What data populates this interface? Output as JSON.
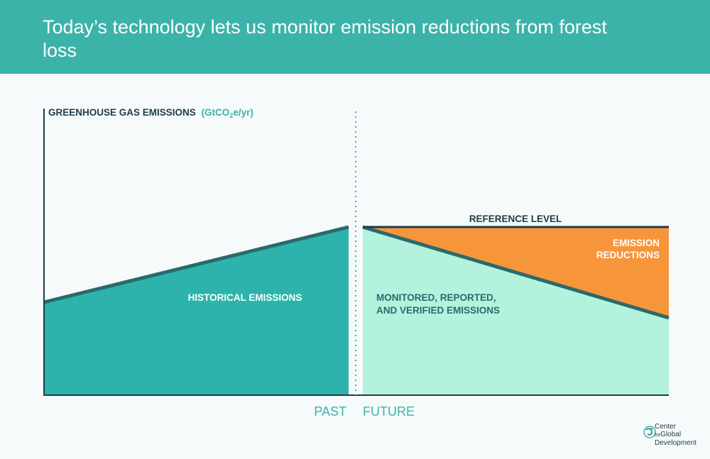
{
  "header": {
    "title": "Today’s technology lets us monitor emission reductions from forest loss"
  },
  "diagram": {
    "y_axis_label_main": "GREENHOUSE GAS EMISSIONS",
    "y_axis_label_unit_prefix": "(GtCO",
    "y_axis_label_unit_sub": "2",
    "y_axis_label_unit_suffix": "e/yr)",
    "reference_level_label": "REFERENCE LEVEL",
    "historical_label": "HISTORICAL EMISSIONS",
    "monitored_label_line1": "MONITORED, REPORTED,",
    "monitored_label_line2": "AND VERIFIED EMISSIONS",
    "reductions_label_line1": "EMISSION",
    "reductions_label_line2": "REDUCTIONS",
    "past_label": "PAST",
    "future_label": "FUTURE"
  },
  "colors": {
    "header": "#3bb3a9",
    "historical_fill": "#2db3ab",
    "monitored_fill": "#b3f3dd",
    "reductions_fill": "#f7953b",
    "line_dark": "#2a6a6d",
    "axis": "#1f3b4b",
    "accent_text": "#3bb3a9"
  },
  "logo": {
    "line1": "Center",
    "line2_small": "for",
    "line2": "Global",
    "line3": "Development"
  }
}
